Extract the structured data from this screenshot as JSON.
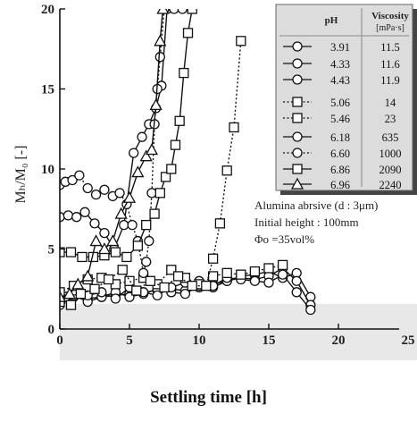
{
  "chart_data": {
    "type": "line",
    "xlabel": "Settling time [h]",
    "ylabel": "Mₕ/M₀ [-]",
    "xlim": [
      0,
      25
    ],
    "ylim": [
      0,
      20
    ],
    "xticks": [
      "0",
      "5",
      "10",
      "15",
      "20",
      "25"
    ],
    "yticks": [
      "0",
      "5",
      "10",
      "15",
      "20"
    ],
    "grid": false,
    "legend_position": "top-right",
    "legend_headers": {
      "ph": "pH",
      "viscosity": "Viscosity",
      "unit": "[mPa·s]"
    },
    "annotations": [
      "Alumina abrsive (d : 3μm)",
      "Initial height : 100mm",
      "Φo =35vol%"
    ],
    "series": [
      {
        "ph": "3.91",
        "viscosity": "11.5",
        "marker": "circle",
        "dash": "solid",
        "x": [
          0,
          1,
          2,
          3,
          4,
          5,
          6,
          7,
          8,
          9,
          10,
          11,
          12,
          13,
          14,
          15,
          16,
          17,
          18
        ],
        "y": [
          1.5,
          2,
          1.9,
          2,
          2.1,
          2.2,
          2.3,
          2.4,
          2.5,
          2.4,
          2.6,
          2.8,
          3,
          3.3,
          3.4,
          3.6,
          3.2,
          3.5,
          2
        ]
      },
      {
        "ph": "4.33",
        "viscosity": "11.6",
        "marker": "circle",
        "dash": "solid",
        "x": [
          0,
          1,
          2,
          3,
          4,
          5,
          6,
          7,
          8,
          9,
          10,
          11,
          12,
          13,
          14,
          15,
          16,
          17,
          18
        ],
        "y": [
          1.8,
          2.1,
          1.7,
          2,
          2.3,
          2,
          2.2,
          2.5,
          2.3,
          2.2,
          2.7,
          2.6,
          3,
          3.2,
          3.1,
          3.3,
          3.8,
          3,
          1.5
        ]
      },
      {
        "ph": "4.43",
        "viscosity": "11.9",
        "marker": "circle",
        "dash": "solid",
        "x": [
          0,
          1,
          2,
          3,
          4,
          5,
          6,
          7,
          8,
          9,
          10,
          11,
          12,
          13,
          14,
          15,
          16,
          17,
          18
        ],
        "y": [
          2.2,
          2.4,
          2.1,
          2.3,
          1.9,
          2.6,
          2.3,
          2.1,
          2.6,
          2.9,
          3,
          2.7,
          3.2,
          3.1,
          3,
          2.9,
          3.4,
          2.3,
          1.2
        ]
      },
      {
        "ph": "5.06",
        "viscosity": "14",
        "marker": "square",
        "dash": "dotted",
        "x": [
          0,
          1,
          2,
          3,
          4,
          5,
          6,
          7,
          8,
          9,
          10,
          11,
          12,
          13,
          14,
          15,
          16
        ],
        "y": [
          2.3,
          2.7,
          3.1,
          3.2,
          2.8,
          3,
          3.2,
          2.8,
          3.7,
          3.2,
          2.8,
          3.3,
          3.5,
          3.4,
          3.6,
          3.8,
          4
        ]
      },
      {
        "ph": "5.46",
        "viscosity": "23",
        "marker": "square",
        "dash": "dotted",
        "x": [
          0,
          0.8,
          1.5,
          2.5,
          3.5,
          4.5,
          5.5,
          6.5,
          7.5,
          8.5,
          9.5,
          10.5,
          11,
          11.5,
          12,
          12.5,
          13
        ],
        "y": [
          1.7,
          1.5,
          2.2,
          2.5,
          3.1,
          3.7,
          2.4,
          3,
          2.6,
          3.3,
          2.7,
          2.7,
          4.4,
          6.6,
          9.9,
          12.6,
          18
        ]
      },
      {
        "ph": "6.18",
        "viscosity": "635",
        "marker": "circle",
        "dash": "solid",
        "x": [
          0,
          0.6,
          1.2,
          1.8,
          2.5,
          3.2,
          3.9,
          4.6,
          5.3,
          5.9,
          6.4,
          6.9,
          7.3,
          7.7,
          8.2,
          8.8
        ],
        "y": [
          7,
          7.1,
          7,
          7.3,
          6.6,
          6,
          5,
          6.5,
          11,
          12,
          12.8,
          13.8,
          15.2,
          20,
          20,
          20
        ]
      },
      {
        "ph": "6.60",
        "viscosity": "1000",
        "marker": "circle",
        "dash": "dotted",
        "x": [
          0,
          0.4,
          0.9,
          1.4,
          2,
          2.6,
          3.2,
          3.8,
          4.3,
          4.8,
          5.2,
          5.6,
          6,
          6.2,
          6.4,
          6.6,
          6.8,
          7,
          7.2,
          7.5
        ],
        "y": [
          9,
          9.2,
          9.3,
          9.6,
          8.8,
          8.4,
          8.7,
          8.3,
          8.5,
          7.8,
          6.5,
          5.5,
          3.5,
          4.2,
          5.5,
          8.5,
          12.8,
          15,
          17,
          20
        ]
      },
      {
        "ph": "6.86",
        "viscosity": "2090",
        "marker": "square",
        "dash": "solid",
        "x": [
          0,
          0.8,
          1.6,
          2.4,
          3.2,
          4,
          4.8,
          5.6,
          6.2,
          6.8,
          7.2,
          7.6,
          8,
          8.3,
          8.6,
          8.9,
          9.2,
          9.5
        ],
        "y": [
          4.8,
          4.8,
          4.5,
          4.5,
          4.6,
          4.8,
          4.5,
          5.2,
          6.5,
          7.2,
          8.5,
          9.5,
          10,
          11.5,
          13,
          16,
          18.5,
          20
        ]
      },
      {
        "ph": "6.96",
        "viscosity": "2240",
        "marker": "triangle",
        "dash": "solid",
        "x": [
          0,
          0.7,
          1.3,
          2,
          2.6,
          3.2,
          3.8,
          4.4,
          5,
          5.6,
          6.2,
          6.6,
          6.9,
          7.2,
          7.4
        ],
        "y": [
          2,
          2.2,
          2.8,
          3.3,
          5.5,
          5,
          5.5,
          7.2,
          8.2,
          9.8,
          10.8,
          11.2,
          14,
          18,
          20
        ]
      }
    ]
  }
}
